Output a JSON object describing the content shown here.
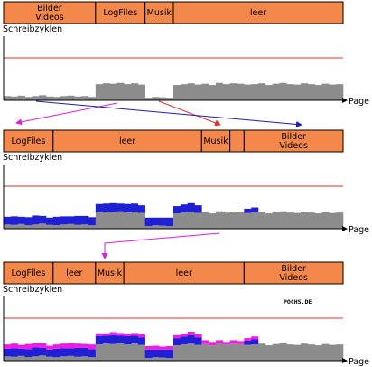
{
  "colors": {
    "segment_fill": "#F4884A",
    "limit_line": "#E0302A",
    "bar_gray": "#8C8C8C",
    "bar_blue": "#1F1FD6",
    "bar_magenta": "#F01AE6",
    "arrow_magenta": "#E31AE0",
    "arrow_red": "#E0302A",
    "arrow_blue": "#1A1AC8"
  },
  "axis_labels": {
    "y": "Schreibzyklen",
    "x": "Page"
  },
  "watermark": "POCHS.DE",
  "panels": [
    {
      "segments": [
        {
          "label": "Bilder\nVideos",
          "pages": [
            0,
            13
          ]
        },
        {
          "label": "LogFiles",
          "pages": [
            13,
            20
          ]
        },
        {
          "label": "Musik",
          "pages": [
            20,
            24
          ]
        },
        {
          "label": "leer",
          "pages": [
            24,
            48
          ]
        }
      ]
    },
    {
      "segments": [
        {
          "label": "LogFiles",
          "pages": [
            0,
            7
          ]
        },
        {
          "label": "leer",
          "pages": [
            7,
            28
          ]
        },
        {
          "label": "Musik",
          "pages": [
            28,
            32
          ]
        },
        {
          "label": "",
          "pages": [
            32,
            34
          ]
        },
        {
          "label": "Bilder\nVideos",
          "pages": [
            34,
            48
          ]
        }
      ]
    },
    {
      "segments": [
        {
          "label": "LogFiles",
          "pages": [
            0,
            7
          ]
        },
        {
          "label": "leer",
          "pages": [
            7,
            13
          ]
        },
        {
          "label": "Musik",
          "pages": [
            13,
            17
          ]
        },
        {
          "label": "leer",
          "pages": [
            17,
            34
          ]
        },
        {
          "label": "Bilder\nVideos",
          "pages": [
            34,
            48
          ]
        }
      ]
    }
  ],
  "chart_data": [
    {
      "type": "bar",
      "limit_value": 100,
      "ylim": [
        0,
        160
      ],
      "series": [
        {
          "color": "gray",
          "values": [
            10,
            9,
            11,
            8,
            10,
            12,
            9,
            8,
            10,
            11,
            9,
            10,
            8,
            38,
            40,
            39,
            41,
            38,
            40,
            37,
            6,
            8,
            7,
            6,
            36,
            38,
            40,
            37,
            39,
            36,
            41,
            38,
            40,
            39,
            37,
            38,
            40,
            36,
            39,
            41,
            38,
            37,
            40,
            38,
            36,
            39,
            37,
            38
          ]
        }
      ]
    },
    {
      "type": "bar",
      "limit_value": 100,
      "ylim": [
        0,
        160
      ],
      "series": [
        {
          "color": "gray",
          "values": [
            10,
            9,
            11,
            8,
            10,
            12,
            9,
            8,
            10,
            11,
            9,
            10,
            8,
            38,
            40,
            39,
            41,
            38,
            40,
            37,
            6,
            8,
            7,
            6,
            36,
            38,
            40,
            37,
            39,
            36,
            41,
            38,
            40,
            39,
            37,
            38,
            40,
            36,
            39,
            41,
            38,
            37,
            40,
            38,
            36,
            39,
            37,
            38
          ]
        },
        {
          "color": "blue",
          "values": [
            18,
            20,
            17,
            19,
            21,
            18,
            17,
            20,
            19,
            18,
            21,
            20,
            19,
            20,
            19,
            21,
            18,
            20,
            19,
            18,
            20,
            18,
            19,
            20,
            17,
            19,
            20,
            18,
            0,
            0,
            0,
            0,
            0,
            0,
            10,
            12,
            0,
            0,
            0,
            0,
            0,
            0,
            0,
            0,
            0,
            0,
            0,
            0
          ]
        }
      ]
    },
    {
      "type": "bar",
      "limit_value": 100,
      "ylim": [
        0,
        160
      ],
      "series": [
        {
          "color": "gray",
          "values": [
            10,
            9,
            11,
            8,
            10,
            12,
            9,
            8,
            10,
            11,
            9,
            10,
            8,
            38,
            40,
            39,
            41,
            38,
            40,
            37,
            6,
            8,
            7,
            6,
            36,
            38,
            40,
            37,
            39,
            36,
            41,
            38,
            40,
            39,
            37,
            38,
            40,
            36,
            39,
            41,
            38,
            37,
            40,
            38,
            36,
            39,
            37,
            38
          ]
        },
        {
          "color": "blue",
          "values": [
            18,
            20,
            17,
            19,
            21,
            18,
            17,
            20,
            19,
            18,
            21,
            20,
            19,
            20,
            19,
            21,
            18,
            20,
            19,
            18,
            20,
            18,
            19,
            20,
            17,
            19,
            20,
            18,
            0,
            0,
            0,
            0,
            0,
            0,
            10,
            12,
            0,
            0,
            0,
            0,
            0,
            0,
            0,
            0,
            0,
            0,
            0,
            0
          ]
        },
        {
          "color": "magenta",
          "values": [
            10,
            11,
            9,
            12,
            10,
            11,
            9,
            10,
            11,
            12,
            10,
            9,
            11,
            6,
            5,
            7,
            6,
            5,
            6,
            7,
            8,
            9,
            7,
            8,
            7,
            6,
            8,
            7,
            9,
            8,
            7,
            6,
            8,
            7,
            6,
            7,
            0,
            0,
            0,
            0,
            0,
            0,
            0,
            0,
            0,
            0,
            0,
            0
          ]
        }
      ]
    }
  ]
}
